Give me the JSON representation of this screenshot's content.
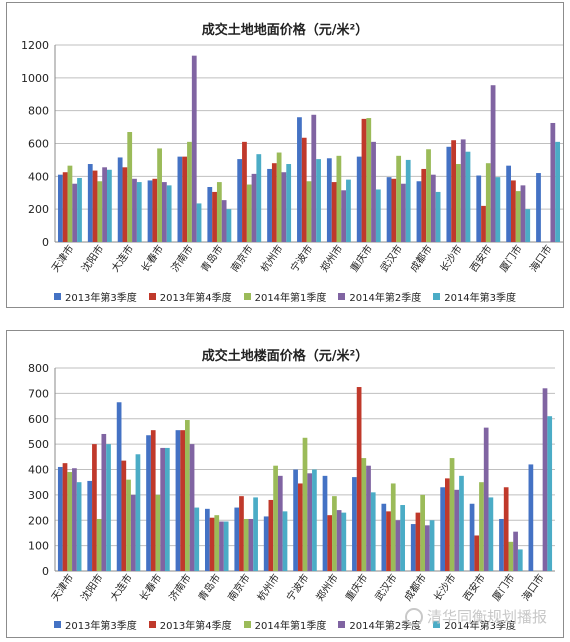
{
  "colors": [
    "#4472c4",
    "#c0392b",
    "#9bbb59",
    "#8064a2",
    "#4bacc6"
  ],
  "chart_data": [
    {
      "type": "bar",
      "title": "成交土地地面价格（元/米²）",
      "categories": [
        "天津市",
        "沈阳市",
        "大连市",
        "长春市",
        "济南市",
        "青岛市",
        "南京市",
        "杭州市",
        "宁波市",
        "郑州市",
        "重庆市",
        "武汉市",
        "成都市",
        "长沙市",
        "西安市",
        "厦门市",
        "海口市"
      ],
      "ylim": [
        0,
        1200
      ],
      "yticks": [
        0,
        200,
        400,
        600,
        800,
        1000,
        1200
      ],
      "grid": true,
      "legend_position": "bottom",
      "series": [
        {
          "name": "2013年第3季度",
          "values": [
            410,
            475,
            515,
            375,
            520,
            335,
            505,
            445,
            760,
            510,
            520,
            395,
            370,
            580,
            405,
            465,
            420
          ]
        },
        {
          "name": "2013年第4季度",
          "values": [
            425,
            435,
            455,
            385,
            520,
            305,
            610,
            480,
            635,
            365,
            750,
            385,
            445,
            620,
            220,
            375,
            null
          ]
        },
        {
          "name": "2014年第1季度",
          "values": [
            465,
            370,
            670,
            570,
            610,
            365,
            350,
            545,
            370,
            525,
            755,
            525,
            565,
            475,
            480,
            310,
            null
          ]
        },
        {
          "name": "2014年第2季度",
          "values": [
            355,
            455,
            385,
            365,
            1135,
            255,
            415,
            425,
            775,
            315,
            610,
            355,
            410,
            625,
            955,
            345,
            725
          ]
        },
        {
          "name": "2014年第3季度",
          "values": [
            390,
            440,
            365,
            345,
            235,
            200,
            535,
            475,
            505,
            380,
            320,
            500,
            305,
            550,
            395,
            200,
            610
          ]
        }
      ]
    },
    {
      "type": "bar",
      "title": "成交土地楼面价格（元/米²）",
      "categories": [
        "天津市",
        "沈阳市",
        "大连市",
        "长春市",
        "济南市",
        "青岛市",
        "南京市",
        "杭州市",
        "宁波市",
        "郑州市",
        "重庆市",
        "武汉市",
        "成都市",
        "长沙市",
        "西安市",
        "厦门市",
        "海口市"
      ],
      "ylim": [
        0,
        800
      ],
      "yticks": [
        0,
        100,
        200,
        300,
        400,
        500,
        600,
        700,
        800
      ],
      "grid": true,
      "legend_position": "bottom",
      "series": [
        {
          "name": "2013年第3季度",
          "values": [
            410,
            355,
            665,
            535,
            555,
            245,
            250,
            215,
            400,
            375,
            370,
            265,
            185,
            330,
            265,
            205,
            420
          ]
        },
        {
          "name": "2013年第4季度",
          "values": [
            425,
            500,
            435,
            555,
            555,
            210,
            295,
            280,
            345,
            220,
            725,
            235,
            230,
            365,
            140,
            330,
            null
          ]
        },
        {
          "name": "2014年第1季度",
          "values": [
            390,
            205,
            360,
            300,
            595,
            220,
            205,
            415,
            525,
            295,
            445,
            345,
            300,
            445,
            350,
            115,
            null
          ]
        },
        {
          "name": "2014年第2季度",
          "values": [
            405,
            540,
            300,
            485,
            500,
            195,
            205,
            375,
            385,
            240,
            415,
            200,
            180,
            320,
            565,
            155,
            720
          ]
        },
        {
          "name": "2014年第3季度",
          "values": [
            350,
            500,
            460,
            485,
            250,
            195,
            290,
            235,
            400,
            230,
            310,
            260,
            200,
            375,
            290,
            85,
            610
          ]
        }
      ]
    }
  ],
  "watermark": {
    "text": "清华同衡规划播报"
  }
}
